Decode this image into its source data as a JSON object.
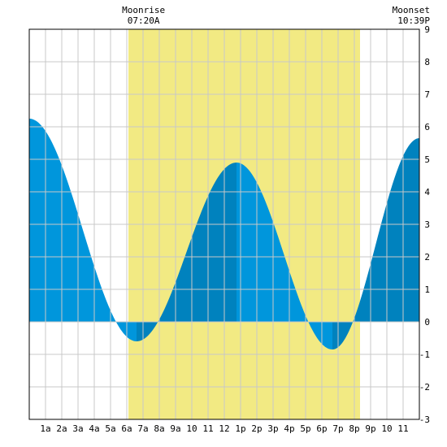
{
  "chart_data": {
    "type": "area",
    "title": "",
    "xlabel": "",
    "ylabel": "",
    "xlim": [
      0,
      24
    ],
    "ylim": [
      -3,
      9
    ],
    "y_ticks": [
      -3,
      -2,
      -1,
      0,
      1,
      2,
      3,
      4,
      5,
      6,
      7,
      8,
      9
    ],
    "y_axis_side": "right",
    "grid": true,
    "x_tick_labels": [
      {
        "x": 1,
        "label": "1a"
      },
      {
        "x": 2,
        "label": "2a"
      },
      {
        "x": 3,
        "label": "3a"
      },
      {
        "x": 4,
        "label": "4a"
      },
      {
        "x": 5,
        "label": "5a"
      },
      {
        "x": 6,
        "label": "6a"
      },
      {
        "x": 7,
        "label": "7a"
      },
      {
        "x": 8,
        "label": "8a"
      },
      {
        "x": 9,
        "label": "9a"
      },
      {
        "x": 10,
        "label": "10"
      },
      {
        "x": 11,
        "label": "11"
      },
      {
        "x": 12,
        "label": "12"
      },
      {
        "x": 13,
        "label": "1p"
      },
      {
        "x": 14,
        "label": "2p"
      },
      {
        "x": 15,
        "label": "3p"
      },
      {
        "x": 16,
        "label": "4p"
      },
      {
        "x": 17,
        "label": "5p"
      },
      {
        "x": 18,
        "label": "6p"
      },
      {
        "x": 19,
        "label": "7p"
      },
      {
        "x": 20,
        "label": "8p"
      },
      {
        "x": 21,
        "label": "9p"
      },
      {
        "x": 22,
        "label": "10"
      },
      {
        "x": 23,
        "label": "11"
      }
    ],
    "daylight": {
      "start": 6.1,
      "end": 20.35,
      "color": "#f2ea83"
    },
    "annotations": [
      {
        "label": "Moonrise",
        "time": "07:20A",
        "x": 7.33
      },
      {
        "label": "Moonset",
        "time": "10:39P",
        "x": 22.65
      }
    ],
    "tide_extrema": [
      {
        "x": 0.0,
        "y": 6.25
      },
      {
        "x": 6.6,
        "y": -0.6
      },
      {
        "x": 12.75,
        "y": 4.9
      },
      {
        "x": 18.65,
        "y": -0.85
      },
      {
        "x": 24.0,
        "y": 5.65
      }
    ],
    "series": [
      {
        "values_from": "tide_extrema"
      }
    ],
    "colors": {
      "tide_light": "#0096dc",
      "tide_dark": "#0082be",
      "grid": "#c8c8c8",
      "border": "#000000",
      "background": "#ffffff"
    }
  }
}
